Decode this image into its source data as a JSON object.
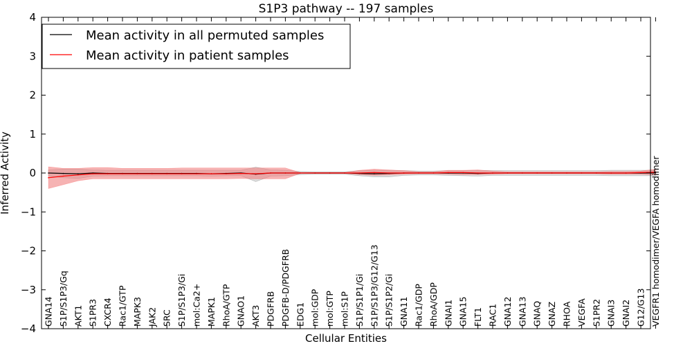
{
  "chart_data": {
    "type": "line",
    "title": "S1P3 pathway -- 197 samples",
    "xlabel": "Cellular Entities",
    "ylabel": "Inferred Activity",
    "ylim": [
      -4,
      4
    ],
    "yticks": [
      4,
      3,
      2,
      1,
      0,
      -1,
      -2,
      -3,
      -4
    ],
    "ytick_labels": [
      "4",
      "3",
      "2",
      "1",
      "0",
      "−1",
      "−2",
      "−3",
      "−4"
    ],
    "legend": {
      "placement": "top-left",
      "entries": [
        {
          "label": "Mean activity in all permuted samples",
          "color": "#000000"
        },
        {
          "label": "Mean activity in patient samples",
          "color": "#ff0000"
        }
      ]
    },
    "categories": [
      "GNA14",
      "S1P/S1P3/Gq",
      "AKT1",
      "S1PR3",
      "CXCR4",
      "Rac1/GTP",
      "MAPK3",
      "JAK2",
      "SRC",
      "S1P/S1P3/Gi",
      "mol:Ca2+",
      "MAPK1",
      "RhoA/GTP",
      "GNAO1",
      "AKT3",
      "PDGFRB",
      "PDGFB-D/PDGFRB",
      "EDG1",
      "mol:GDP",
      "mol:GTP",
      "mol:S1P",
      "S1P/S1P1/Gi",
      "S1P/S1P3/G12/G13",
      "S1P/S1P2/Gi",
      "GNA11",
      "Rac1/GDP",
      "RhoA/GDP",
      "GNAI1",
      "GNA15",
      "FLT1",
      "RAC1",
      "GNA12",
      "GNA13",
      "GNAQ",
      "GNAZ",
      "RHOA",
      "VEGFA",
      "S1PR2",
      "GNAI3",
      "GNAI2",
      "G12/G13",
      "VEGFR1 homodimer/VEGFA homodimer"
    ],
    "series": [
      {
        "name": "Mean activity in all permuted samples",
        "color": "#000000",
        "band_color": "#d3d3d3",
        "values": [
          0.0,
          -0.01,
          -0.02,
          0.0,
          -0.01,
          -0.01,
          -0.01,
          -0.01,
          -0.01,
          -0.01,
          -0.01,
          -0.02,
          -0.01,
          0.0,
          -0.03,
          0.0,
          0.0,
          0.0,
          0.0,
          0.0,
          0.0,
          -0.01,
          -0.02,
          -0.01,
          0.0,
          0.0,
          0.0,
          0.0,
          0.0,
          -0.01,
          0.0,
          0.0,
          0.0,
          0.0,
          0.0,
          0.0,
          0.0,
          0.0,
          0.0,
          0.0,
          0.0,
          0.0
        ],
        "lower": [
          -0.08,
          -0.12,
          -0.14,
          -0.08,
          -0.07,
          -0.07,
          -0.07,
          -0.07,
          -0.07,
          -0.07,
          -0.07,
          -0.08,
          -0.07,
          -0.07,
          -0.22,
          -0.08,
          -0.07,
          -0.04,
          -0.03,
          -0.03,
          -0.03,
          -0.07,
          -0.1,
          -0.1,
          -0.06,
          -0.05,
          -0.05,
          -0.06,
          -0.07,
          -0.08,
          -0.06,
          -0.06,
          -0.06,
          -0.06,
          -0.06,
          -0.06,
          -0.06,
          -0.06,
          -0.07,
          -0.07,
          -0.07,
          -0.07
        ],
        "upper": [
          0.08,
          0.1,
          0.1,
          0.08,
          0.07,
          0.07,
          0.07,
          0.07,
          0.07,
          0.07,
          0.07,
          0.07,
          0.07,
          0.07,
          0.15,
          0.08,
          0.07,
          0.04,
          0.03,
          0.03,
          0.03,
          0.06,
          0.07,
          0.07,
          0.06,
          0.05,
          0.05,
          0.06,
          0.06,
          0.07,
          0.06,
          0.06,
          0.06,
          0.06,
          0.06,
          0.06,
          0.06,
          0.06,
          0.07,
          0.07,
          0.07,
          0.07
        ]
      },
      {
        "name": "Mean activity in patient samples",
        "color": "#ff0000",
        "band_color": "#f08080",
        "values": [
          -0.12,
          -0.08,
          -0.05,
          -0.02,
          -0.02,
          -0.02,
          -0.02,
          -0.02,
          -0.02,
          -0.02,
          -0.02,
          -0.02,
          -0.02,
          -0.01,
          -0.02,
          0.0,
          0.0,
          0.0,
          0.0,
          0.0,
          0.0,
          0.0,
          0.01,
          0.0,
          0.0,
          0.0,
          0.0,
          0.01,
          0.01,
          0.0,
          0.0,
          0.0,
          0.0,
          0.0,
          0.0,
          0.0,
          0.0,
          0.0,
          0.0,
          0.0,
          0.01,
          0.02
        ],
        "lower": [
          -0.4,
          -0.3,
          -0.2,
          -0.15,
          -0.15,
          -0.15,
          -0.15,
          -0.15,
          -0.15,
          -0.15,
          -0.15,
          -0.15,
          -0.15,
          -0.14,
          -0.15,
          -0.15,
          -0.15,
          -0.01,
          -0.01,
          -0.01,
          -0.01,
          -0.04,
          -0.06,
          -0.05,
          -0.03,
          -0.02,
          -0.02,
          -0.03,
          -0.04,
          -0.04,
          -0.03,
          -0.02,
          -0.02,
          -0.02,
          -0.02,
          -0.02,
          -0.02,
          -0.02,
          -0.03,
          -0.03,
          -0.03,
          -0.05
        ],
        "upper": [
          0.16,
          0.12,
          0.12,
          0.14,
          0.14,
          0.12,
          0.12,
          0.12,
          0.12,
          0.13,
          0.13,
          0.13,
          0.13,
          0.13,
          0.13,
          0.13,
          0.13,
          0.01,
          0.01,
          0.01,
          0.01,
          0.07,
          0.1,
          0.08,
          0.06,
          0.03,
          0.03,
          0.07,
          0.07,
          0.08,
          0.05,
          0.03,
          0.03,
          0.03,
          0.03,
          0.03,
          0.03,
          0.03,
          0.04,
          0.04,
          0.05,
          0.1
        ]
      }
    ]
  }
}
